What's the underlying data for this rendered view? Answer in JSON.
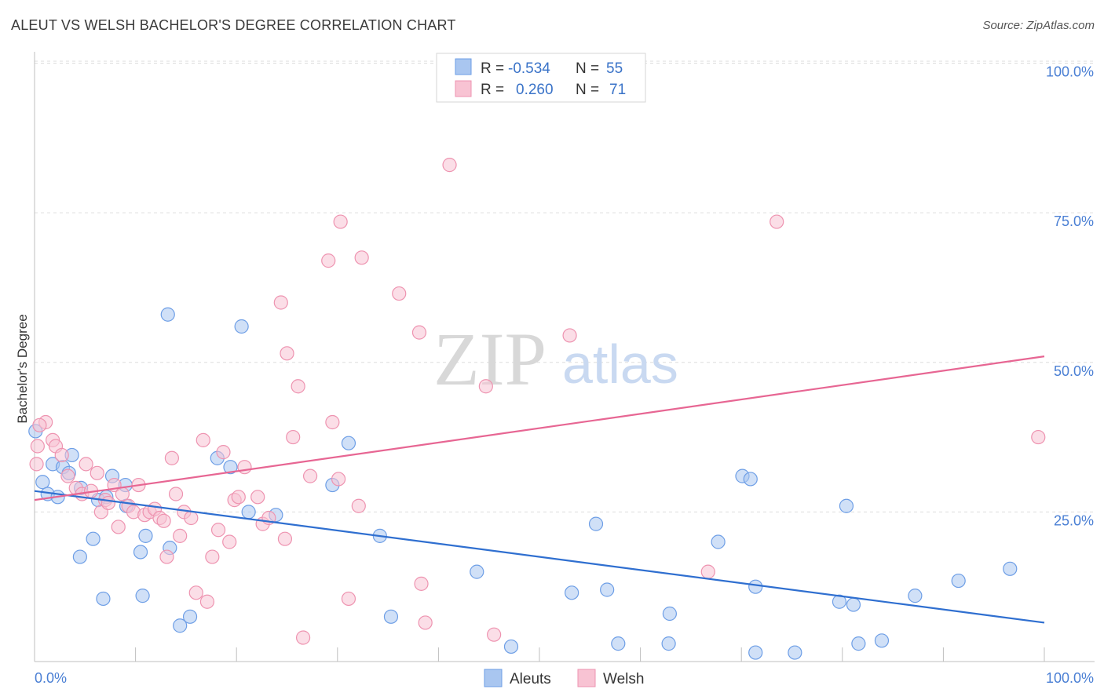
{
  "header": {
    "title": "ALEUT VS WELSH BACHELOR'S DEGREE CORRELATION CHART",
    "source": "Source: ZipAtlas.com"
  },
  "watermark": {
    "zip": "ZIP",
    "atlas": "atlas"
  },
  "legend": {
    "rows": [
      {
        "r_label": "R =",
        "r_value": "-0.534",
        "n_label": "N =",
        "n_value": "55",
        "color": "#a9c6f0",
        "stroke": "#6d9ee6"
      },
      {
        "r_label": "R =",
        "r_value": "0.260",
        "n_label": "N =",
        "n_value": "71",
        "color": "#f8c3d3",
        "stroke": "#ee93b0"
      }
    ]
  },
  "bottom_legend": {
    "items": [
      {
        "label": "Aleuts",
        "color": "#a9c6f0",
        "stroke": "#6d9ee6"
      },
      {
        "label": "Welsh",
        "color": "#f8c3d3",
        "stroke": "#ee93b0"
      }
    ]
  },
  "chart_data": {
    "type": "scatter",
    "title": "ALEUT VS WELSH BACHELOR'S DEGREE CORRELATION CHART",
    "xlabel": "",
    "ylabel": "Bachelor's Degree",
    "xlim": [
      0,
      100
    ],
    "ylim": [
      0,
      105
    ],
    "x_tick_labels": [
      "0.0%",
      "100.0%"
    ],
    "y_tick_labels": [
      {
        "value": 25,
        "label": "25.0%"
      },
      {
        "value": 50,
        "label": "50.0%"
      },
      {
        "value": 75,
        "label": "75.0%"
      },
      {
        "value": 100,
        "label": "100.0%"
      }
    ],
    "grid": true,
    "legend_position": "top-center",
    "series": [
      {
        "name": "Aleuts",
        "color": "#a9c6f0",
        "stroke": "#6d9ee6",
        "line_color": "#2f6fd0",
        "trend": {
          "x": [
            0,
            100
          ],
          "y": [
            28.5,
            6.5
          ]
        },
        "points": [
          [
            0.1,
            38.5
          ],
          [
            0.8,
            30
          ],
          [
            1.3,
            28
          ],
          [
            1.8,
            33
          ],
          [
            2.3,
            27.5
          ],
          [
            3.7,
            34.5
          ],
          [
            2.8,
            32.5
          ],
          [
            3.4,
            31.5
          ],
          [
            4.6,
            29
          ],
          [
            4.5,
            17.5
          ],
          [
            5.8,
            20.5
          ],
          [
            6.3,
            27
          ],
          [
            7.1,
            27.5
          ],
          [
            7.7,
            31
          ],
          [
            6.8,
            10.5
          ],
          [
            9.0,
            29.5
          ],
          [
            9.1,
            26
          ],
          [
            10.5,
            18.3
          ],
          [
            11.0,
            21
          ],
          [
            10.7,
            11
          ],
          [
            13.4,
            19
          ],
          [
            13.2,
            58
          ],
          [
            14.4,
            6
          ],
          [
            15.4,
            7.5
          ],
          [
            18.1,
            34
          ],
          [
            19.4,
            32.5
          ],
          [
            20.5,
            56
          ],
          [
            21.2,
            25
          ],
          [
            23.9,
            24.5
          ],
          [
            29.5,
            29.5
          ],
          [
            31.1,
            36.5
          ],
          [
            34.2,
            21
          ],
          [
            35.3,
            7.5
          ],
          [
            43.8,
            15
          ],
          [
            47.2,
            2.5
          ],
          [
            53.2,
            11.5
          ],
          [
            55.6,
            23
          ],
          [
            56.7,
            12
          ],
          [
            57.8,
            3
          ],
          [
            62.8,
            3
          ],
          [
            62.9,
            8
          ],
          [
            67.7,
            20
          ],
          [
            70.1,
            31
          ],
          [
            70.9,
            30.5
          ],
          [
            71.4,
            12.5
          ],
          [
            71.4,
            1.5
          ],
          [
            75.3,
            1.5
          ],
          [
            79.7,
            10
          ],
          [
            80.4,
            26
          ],
          [
            81.1,
            9.5
          ],
          [
            81.6,
            3
          ],
          [
            83.9,
            3.5
          ],
          [
            87.2,
            11
          ],
          [
            91.5,
            13.5
          ],
          [
            96.6,
            15.5
          ]
        ]
      },
      {
        "name": "Welsh",
        "color": "#f8c3d3",
        "stroke": "#ee93b0",
        "line_color": "#e76693",
        "trend": {
          "x": [
            0,
            100
          ],
          "y": [
            27,
            51
          ]
        },
        "points": [
          [
            0.2,
            33
          ],
          [
            1.1,
            40
          ],
          [
            1.8,
            37
          ],
          [
            2.1,
            36
          ],
          [
            2.7,
            34.5
          ],
          [
            3.3,
            31
          ],
          [
            4.1,
            29
          ],
          [
            4.7,
            28
          ],
          [
            5.1,
            33
          ],
          [
            5.6,
            28.5
          ],
          [
            6.2,
            31.5
          ],
          [
            6.6,
            25
          ],
          [
            7.0,
            27
          ],
          [
            7.3,
            26.5
          ],
          [
            7.9,
            29.5
          ],
          [
            8.3,
            22.5
          ],
          [
            8.7,
            28
          ],
          [
            9.3,
            26
          ],
          [
            9.8,
            25
          ],
          [
            10.3,
            29.5
          ],
          [
            10.9,
            24.5
          ],
          [
            11.4,
            25
          ],
          [
            11.9,
            25.5
          ],
          [
            12.4,
            24
          ],
          [
            12.8,
            23.5
          ],
          [
            13.1,
            17.5
          ],
          [
            13.6,
            34
          ],
          [
            14.0,
            28
          ],
          [
            14.4,
            21
          ],
          [
            14.8,
            25
          ],
          [
            15.5,
            24
          ],
          [
            16.0,
            11.5
          ],
          [
            16.7,
            37
          ],
          [
            17.1,
            10
          ],
          [
            17.6,
            17.5
          ],
          [
            18.2,
            22
          ],
          [
            18.7,
            35
          ],
          [
            19.3,
            20
          ],
          [
            19.8,
            27
          ],
          [
            20.2,
            27.5
          ],
          [
            20.8,
            32.5
          ],
          [
            22.1,
            27.5
          ],
          [
            22.6,
            23
          ],
          [
            23.2,
            24
          ],
          [
            24.4,
            60
          ],
          [
            24.8,
            20.5
          ],
          [
            25.0,
            51.5
          ],
          [
            25.6,
            37.5
          ],
          [
            26.1,
            46
          ],
          [
            26.6,
            4
          ],
          [
            27.3,
            31
          ],
          [
            29.1,
            67
          ],
          [
            29.5,
            40
          ],
          [
            30.1,
            30.5
          ],
          [
            30.3,
            73.5
          ],
          [
            31.1,
            10.5
          ],
          [
            32.1,
            26
          ],
          [
            32.4,
            67.5
          ],
          [
            36.1,
            61.5
          ],
          [
            38.1,
            55
          ],
          [
            38.3,
            13
          ],
          [
            38.7,
            6.5
          ],
          [
            41.1,
            83
          ],
          [
            44.7,
            46
          ],
          [
            45.5,
            4.5
          ],
          [
            53.0,
            54.5
          ],
          [
            66.7,
            15
          ],
          [
            73.5,
            73.5
          ],
          [
            99.4,
            37.5
          ],
          [
            0.3,
            36
          ],
          [
            0.5,
            39.5
          ]
        ]
      }
    ]
  }
}
